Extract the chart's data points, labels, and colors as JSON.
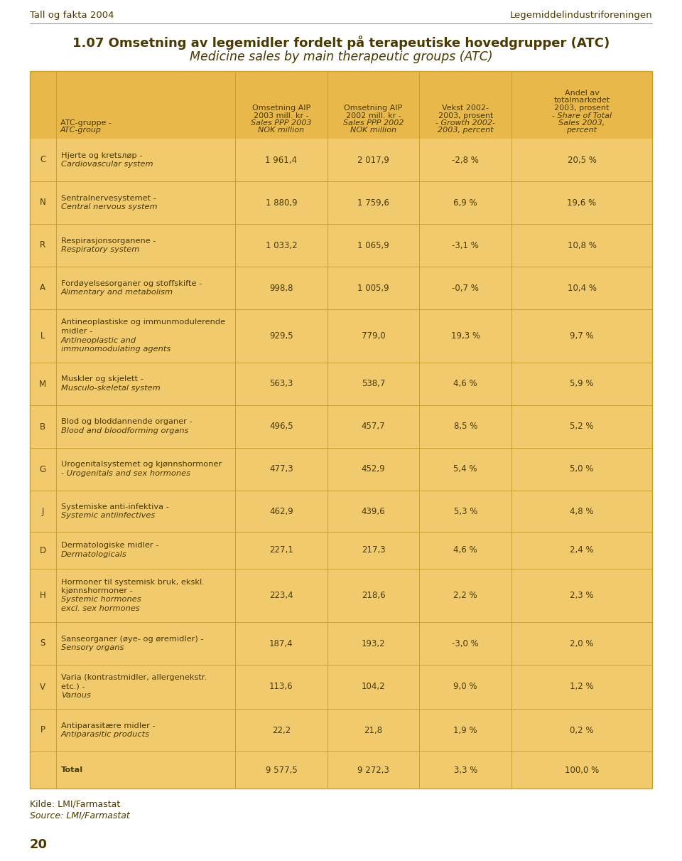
{
  "page_header_left": "Tall og fakta 2004",
  "page_header_right": "Legemiddelindustriforeningen",
  "title_line1": "1.07 Omsetning av legemidler fordelt på terapeutiske hovedgrupper (ATC)",
  "title_line2": "Medicine sales by main therapeutic groups (ATC)",
  "rows": [
    {
      "code": "C",
      "name_normal": "Hjerte og kretsлøp -",
      "name_italic": "Cardiovascular system",
      "val2003": "1 961,4",
      "val2002": "2 017,9",
      "growth": "-2,8 %",
      "share": "20,5 %"
    },
    {
      "code": "N",
      "name_normal": "Sentralnervesystemet -",
      "name_italic": "Central nervous system",
      "val2003": "1 880,9",
      "val2002": "1 759,6",
      "growth": "6,9 %",
      "share": "19,6 %"
    },
    {
      "code": "R",
      "name_normal": "Respirasjonsorganene -",
      "name_italic": "Respiratory system",
      "val2003": "1 033,2",
      "val2002": "1 065,9",
      "growth": "-3,1 %",
      "share": "10,8 %"
    },
    {
      "code": "A",
      "name_normal": "Fordøyelsesorganer og stoffskifte -",
      "name_italic": "Alimentary and metabolism",
      "val2003": "998,8",
      "val2002": "1 005,9",
      "growth": "-0,7 %",
      "share": "10,4 %"
    },
    {
      "code": "L",
      "name_normal": "Antineoplastiske og immunmodulerende\nmidler -",
      "name_italic": "Antineoplastic and\nimmunomodulating agents",
      "val2003": "929,5",
      "val2002": "779,0",
      "growth": "19,3 %",
      "share": "9,7 %"
    },
    {
      "code": "M",
      "name_normal": "Muskler og skjelett -",
      "name_italic": "Musculo-skeletal system",
      "val2003": "563,3",
      "val2002": "538,7",
      "growth": "4,6 %",
      "share": "5,9 %"
    },
    {
      "code": "B",
      "name_normal": "Blod og bloddannende organer -",
      "name_italic": "Blood and bloodforming organs",
      "val2003": "496,5",
      "val2002": "457,7",
      "growth": "8,5 %",
      "share": "5,2 %"
    },
    {
      "code": "G",
      "name_normal": "Urogenitalsystemet og kjønnshormoner",
      "name_italic": "- Urogenitals and sex hormones",
      "val2003": "477,3",
      "val2002": "452,9",
      "growth": "5,4 %",
      "share": "5,0 %"
    },
    {
      "code": "J",
      "name_normal": "Systemiske anti-infektiva -",
      "name_italic": "Systemic antiinfectives",
      "val2003": "462,9",
      "val2002": "439,6",
      "growth": "5,3 %",
      "share": "4,8 %"
    },
    {
      "code": "D",
      "name_normal": "Dermatologiske midler -",
      "name_italic": "Dermatologicals",
      "val2003": "227,1",
      "val2002": "217,3",
      "growth": "4,6 %",
      "share": "2,4 %"
    },
    {
      "code": "H",
      "name_normal": "Hormoner til systemisk bruk, ekskl.\nkjønnshormoner -",
      "name_italic": "Systemic hormones\nexcl. sex hormones",
      "val2003": "223,4",
      "val2002": "218,6",
      "growth": "2,2 %",
      "share": "2,3 %"
    },
    {
      "code": "S",
      "name_normal": "Sanseorganer (øye- og øremidler) -",
      "name_italic": "Sensory organs",
      "val2003": "187,4",
      "val2002": "193,2",
      "growth": "-3,0 %",
      "share": "2,0 %"
    },
    {
      "code": "V",
      "name_normal": "Varia (kontrastmidler, allergenekstr.\netc.) -",
      "name_italic": "Various",
      "val2003": "113,6",
      "val2002": "104,2",
      "growth": "9,0 %",
      "share": "1,2 %"
    },
    {
      "code": "P",
      "name_normal": "Antiparasitære midler -",
      "name_italic": "Antiparasitic products",
      "val2003": "22,2",
      "val2002": "21,8",
      "growth": "1,9 %",
      "share": "0,2 %"
    },
    {
      "code": "",
      "name_normal": "Total",
      "name_italic": "",
      "val2003": "9 577,5",
      "val2002": "9 272,3",
      "growth": "3,3 %",
      "share": "100,0 %"
    }
  ],
  "footer_line1": "Kilde: LMI/Farmastat",
  "footer_line2": "Source: LMI/Farmastat",
  "page_number": "20",
  "bg_color": "#F2CA6E",
  "header_bg": "#E8B84B",
  "row_alt_color": "#F5D485",
  "text_color": "#4A3900",
  "separator_color": "#C8A030",
  "page_bg": "#FFFFFF",
  "title_fontsize": 13,
  "header_fontsize": 8,
  "body_fontsize": 8.5,
  "page_header_fontsize": 9.5
}
